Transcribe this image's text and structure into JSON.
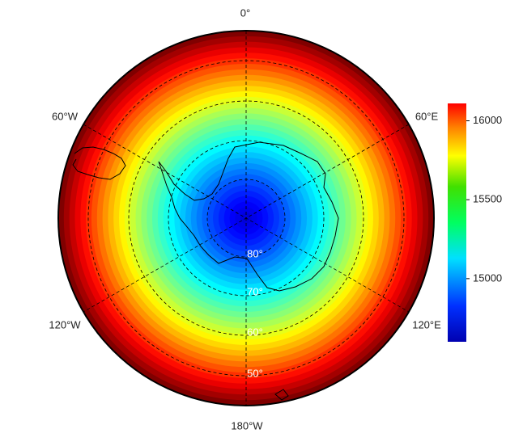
{
  "map": {
    "lon_labels": [
      "0°",
      "60°E",
      "120°E",
      "180°W",
      "120°W",
      "60°W"
    ],
    "lat_labels": [
      "80°",
      "70°",
      "60°",
      "50°"
    ],
    "colorbar": {
      "lim": [
        14600,
        16110
      ],
      "ticks": [
        15000,
        15500,
        16000
      ]
    }
  }
}
